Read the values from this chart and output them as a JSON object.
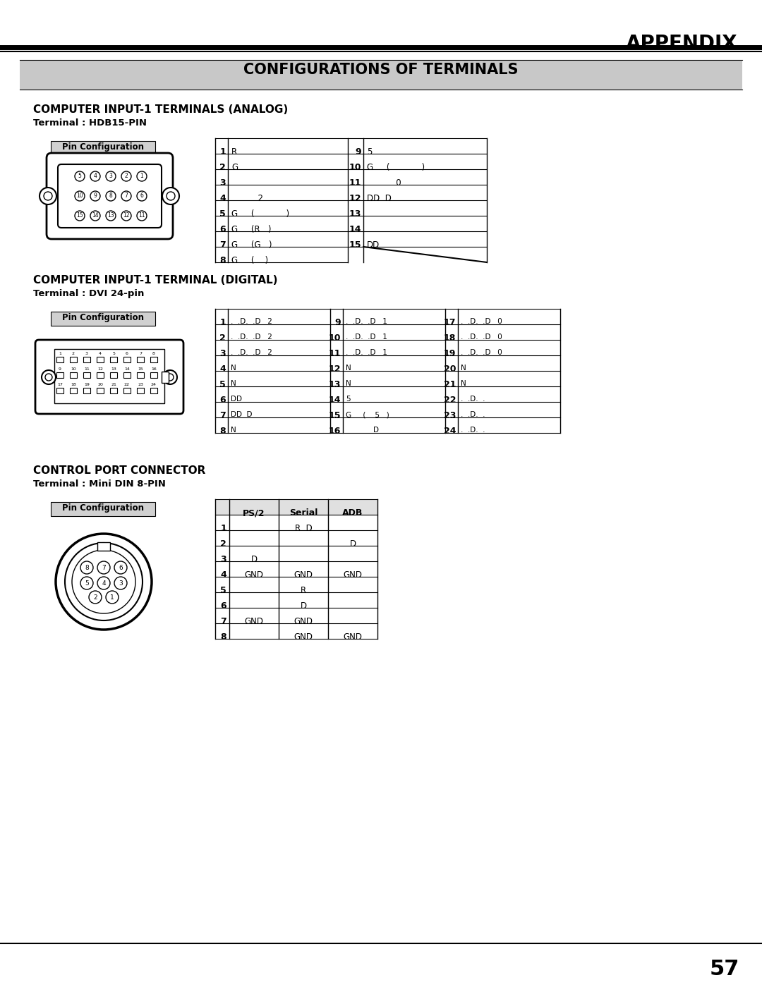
{
  "page_title": "APPENDIX",
  "section_title": "CONFIGURATIONS OF TERMINALS",
  "section1_title": "COMPUTER INPUT-1 TERMINALS (ANALOG)",
  "section1_subtitle": "Terminal : HDB15-PIN",
  "section2_title": "COMPUTER INPUT-1 TERMINAL (DIGITAL)",
  "section2_subtitle": "Terminal : DVI 24-pin",
  "section3_title": "CONTROL PORT CONNECTOR",
  "section3_subtitle": "Terminal : Mini DIN 8-PIN",
  "pin_config_label": "Pin Configuration",
  "analog_table": {
    "rows_left": [
      [
        "1",
        "R"
      ],
      [
        "2",
        "G"
      ],
      [
        "3",
        ""
      ],
      [
        "4",
        "          2"
      ],
      [
        "5",
        "G     (     .     .)"
      ],
      [
        "6",
        "G     (R   )"
      ],
      [
        "7",
        "G     (G   )"
      ],
      [
        "8",
        "G     (    )"
      ]
    ],
    "rows_right": [
      [
        "9",
        "5"
      ],
      [
        "10",
        "G     (     .     .)"
      ],
      [
        "11",
        "           0"
      ],
      [
        "12",
        "DD  D"
      ],
      [
        "13",
        "      .     ."
      ],
      [
        "14",
        "      .     ."
      ],
      [
        "15",
        "DD"
      ],
      [
        "",
        ""
      ]
    ]
  },
  "digital_table": {
    "rows_left": [
      [
        "1",
        ".  .D.  .D   2"
      ],
      [
        "2",
        ".  .D.  .D   2"
      ],
      [
        "3",
        ".  .D.  .D   2"
      ],
      [
        "4",
        "N"
      ],
      [
        "5",
        "N"
      ],
      [
        "6",
        "DD"
      ],
      [
        "7",
        "DD  D"
      ],
      [
        "8",
        "N"
      ]
    ],
    "rows_mid": [
      [
        "9",
        ".  .D.  .D   1"
      ],
      [
        "10",
        ".  .D.  .D   1"
      ],
      [
        "11",
        ".  .D.  .D   1"
      ],
      [
        "12",
        "N"
      ],
      [
        "13",
        "N"
      ],
      [
        "14",
        "5"
      ],
      [
        "15",
        "G     (    5   )"
      ],
      [
        "16",
        "            D"
      ]
    ],
    "rows_right": [
      [
        "17",
        ".  .D.  .D   0"
      ],
      [
        "18",
        ".  .D.  .D   0"
      ],
      [
        "19",
        ".  .D.  .D   0"
      ],
      [
        "20",
        "N"
      ],
      [
        "21",
        "N"
      ],
      [
        "22",
        ".  .D.  ."
      ],
      [
        "23",
        ".  .D.  ."
      ],
      [
        "24",
        ".  .D.  ."
      ]
    ]
  },
  "control_table": {
    "headers": [
      "",
      "PS/2",
      "Serial",
      "ADB"
    ],
    "rows": [
      [
        "1",
        "",
        "R  D",
        ""
      ],
      [
        "2",
        "",
        "",
        "D"
      ],
      [
        "3",
        "D",
        "",
        ""
      ],
      [
        "4",
        "GND",
        "GND",
        "GND"
      ],
      [
        "5",
        "",
        "R",
        ""
      ],
      [
        "6",
        "",
        "D",
        ""
      ],
      [
        "7",
        "GND",
        "GND",
        ""
      ],
      [
        "8",
        "",
        "GND",
        "GND"
      ]
    ]
  },
  "page_number": "57",
  "bg_color": "#ffffff",
  "section_bg": "#c8c8c8",
  "pin_label_bg": "#d0d0d0"
}
